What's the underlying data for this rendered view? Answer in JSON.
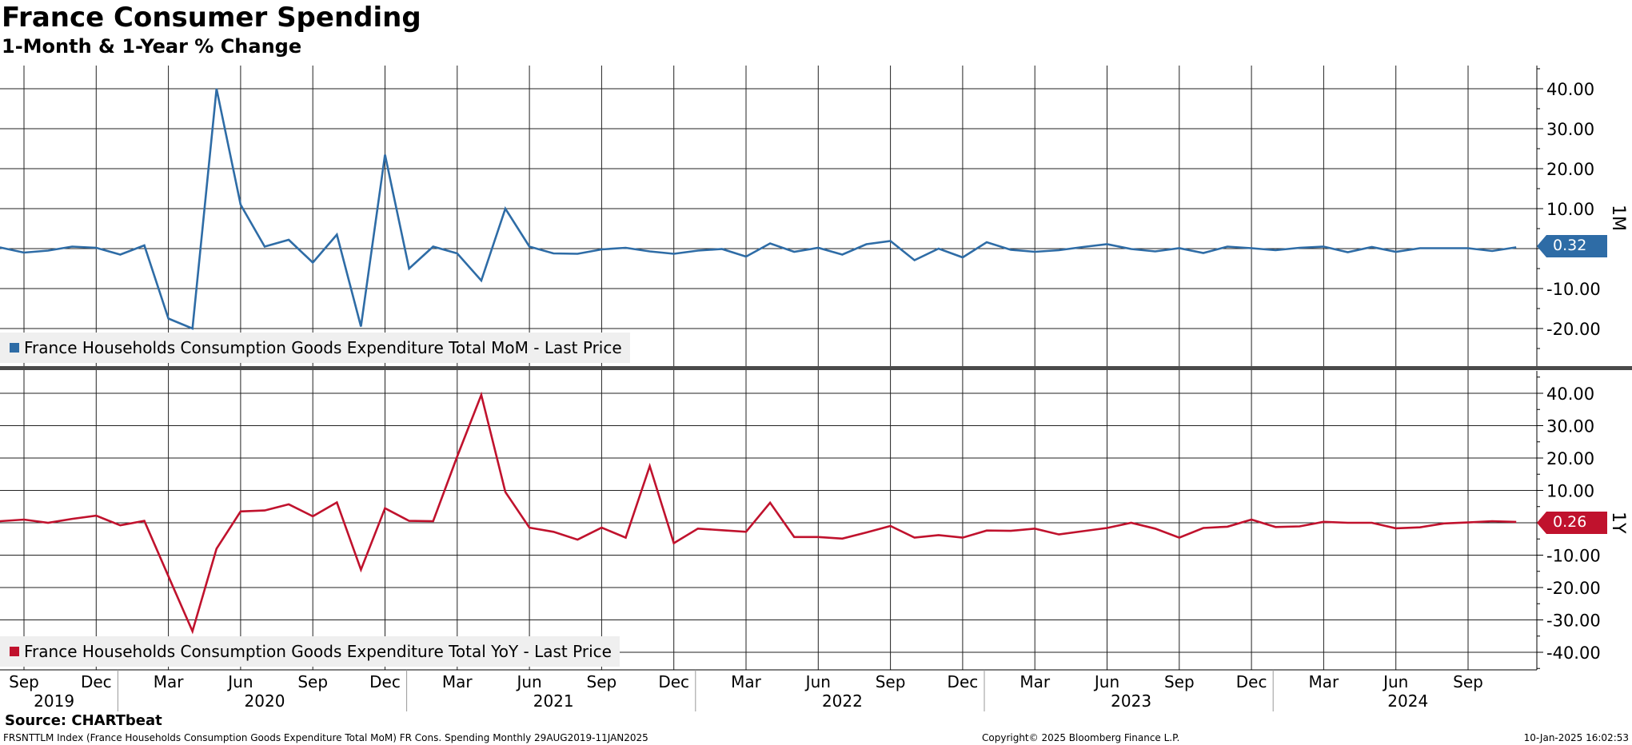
{
  "title": "France Consumer Spending",
  "subtitle": "1-Month & 1-Year % Change",
  "source": "Source: CHARTbeat",
  "footer": {
    "left": "FRSNTTLM Index (France Households Consumption Goods Expenditure Total MoM) FR Cons. Spending  Monthly 29AUG2019-11JAN2025",
    "center": "Copyright© 2025 Bloomberg Finance L.P.",
    "right": "10-Jan-2025 16:02:53"
  },
  "colors": {
    "mom": "#2e6ca6",
    "yoy": "#c0122d"
  },
  "chart_data": [
    {
      "type": "line",
      "panel": "top",
      "side_label": "1M",
      "last_value_label": "0.32",
      "legend": "France Households Consumption Goods Expenditure Total MoM - Last Price",
      "ylim": [
        -30,
        45
      ],
      "yticks": [
        "40.00",
        "30.00",
        "20.00",
        "10.00",
        "",
        "-10.00",
        "-20.00"
      ],
      "ytick_values": [
        40,
        30,
        20,
        10,
        0,
        -10,
        -20
      ],
      "grid": true,
      "start": "2019-08",
      "series": [
        {
          "values": [
            0.3,
            -1.0,
            -0.5,
            0.5,
            0.2,
            -1.5,
            0.8,
            -17.5,
            -20,
            40,
            11,
            0.5,
            2.2,
            -3.5,
            3.5,
            -19.5,
            23.5,
            -5,
            0.5,
            -1.2,
            -8,
            10,
            0.5,
            -1.2,
            -1.3,
            -0.2,
            0.2,
            -0.7,
            -1.3,
            -0.5,
            -0.1,
            -2,
            1.3,
            -0.8,
            0.2,
            -1.5,
            1.1,
            1.9,
            -2.9,
            0,
            -2.2,
            1.6,
            -0.3,
            -0.8,
            -0.4,
            0.4,
            1.1,
            -0.1,
            -0.7,
            0.1,
            -1.1,
            0.5,
            0.1,
            -0.4,
            0.2,
            0.5,
            -0.9,
            0.4,
            -0.8,
            0.1,
            0.1,
            0.1,
            -0.6,
            0.32
          ]
        }
      ]
    },
    {
      "type": "line",
      "panel": "bottom",
      "side_label": "1Y",
      "last_value_label": "0.26",
      "legend": "France Households Consumption Goods Expenditure Total YoY - Last Price",
      "ylim": [
        -45,
        43
      ],
      "yticks": [
        "40.00",
        "30.00",
        "20.00",
        "10.00",
        "",
        "-10.00",
        "-20.00",
        "-30.00",
        "-40.00"
      ],
      "ytick_values": [
        40,
        30,
        20,
        10,
        0,
        -10,
        -20,
        -30,
        -40
      ],
      "grid": true,
      "start": "2019-08",
      "series": [
        {
          "values": [
            0.5,
            1,
            0,
            1.2,
            2.2,
            -0.8,
            0.6,
            -16.5,
            -33.5,
            -8,
            3.5,
            3.8,
            5.7,
            2,
            6.3,
            -14.5,
            4.5,
            0.6,
            0.5,
            20.5,
            39.5,
            9.5,
            -1.5,
            -2.8,
            -5.2,
            -1.5,
            -4.6,
            17.5,
            -6.3,
            -1.8,
            -2.3,
            -2.8,
            6.2,
            -4.4,
            -4.4,
            -4.9,
            -3,
            -1,
            -4.6,
            -3.8,
            -4.6,
            -2.4,
            -2.5,
            -1.8,
            -3.6,
            -2.6,
            -1.6,
            0,
            -1.8,
            -4.6,
            -1.6,
            -1.2,
            1,
            -1.3,
            -1.1,
            0.3,
            0,
            0,
            -1.7,
            -1.4,
            -0.2,
            0.1,
            0.5,
            0.26
          ]
        }
      ]
    }
  ],
  "x_axis": {
    "months": [
      "Sep",
      "Dec",
      "Mar",
      "Jun",
      "Sep",
      "Dec",
      "Mar",
      "Jun",
      "Sep",
      "Dec",
      "Mar",
      "Jun",
      "Sep",
      "Dec",
      "Mar",
      "Jun",
      "Sep",
      "Dec",
      "Mar",
      "Jun",
      "Sep"
    ],
    "years": [
      "2019",
      "2020",
      "2021",
      "2022",
      "2023",
      "2024"
    ]
  }
}
